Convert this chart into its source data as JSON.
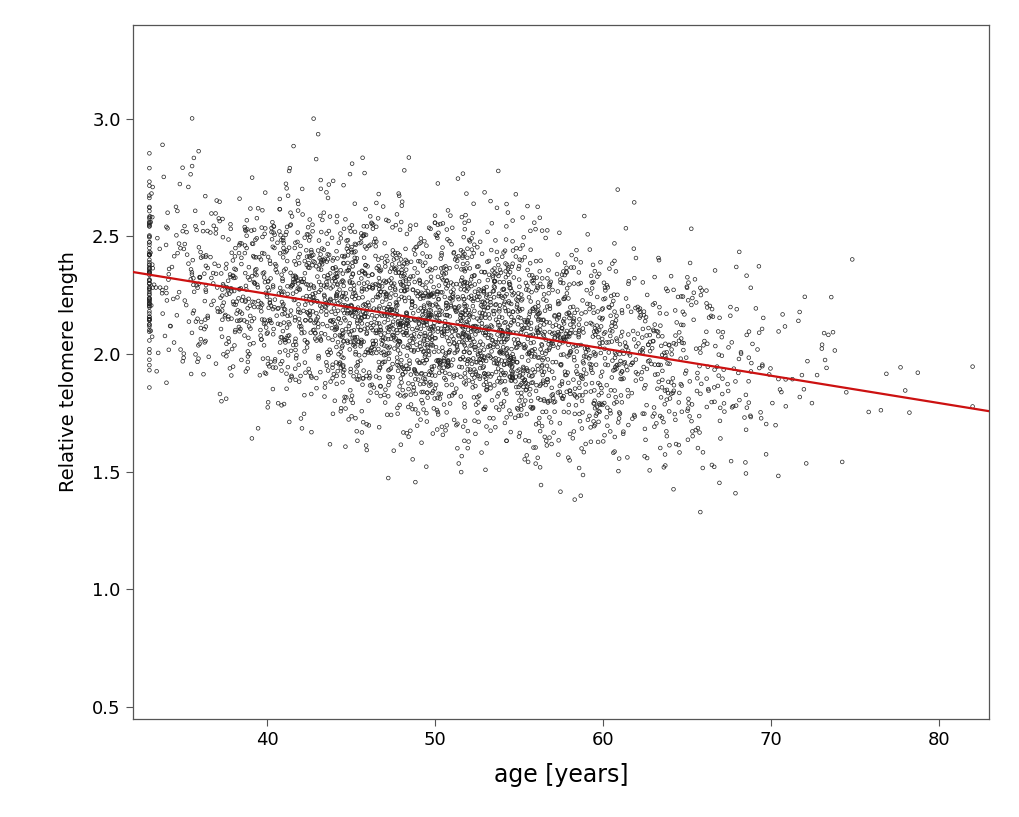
{
  "title": "",
  "xlabel": "age [years]",
  "ylabel": "Relative telomere length",
  "xlim": [
    32,
    83
  ],
  "ylim": [
    0.45,
    3.4
  ],
  "xticks": [
    40,
    50,
    60,
    70,
    80
  ],
  "yticks": [
    0.5,
    1.0,
    1.5,
    2.0,
    2.5,
    3.0
  ],
  "scatter_color": "none",
  "scatter_edgecolor": "#222222",
  "scatter_size": 7,
  "scatter_linewidth": 0.5,
  "line_color": "#cc1111",
  "line_width": 1.6,
  "regression_intercept": 2.72,
  "regression_slope": -0.0116,
  "seed": 42,
  "n_points": 3500,
  "age_mean": 50,
  "age_std": 9,
  "age_min": 33,
  "age_max": 82,
  "noise_std": 0.22,
  "background_color": "#ffffff",
  "xlabel_fontsize": 17,
  "ylabel_fontsize": 14,
  "tick_fontsize": 13,
  "spine_color": "#555555",
  "spine_linewidth": 0.9
}
